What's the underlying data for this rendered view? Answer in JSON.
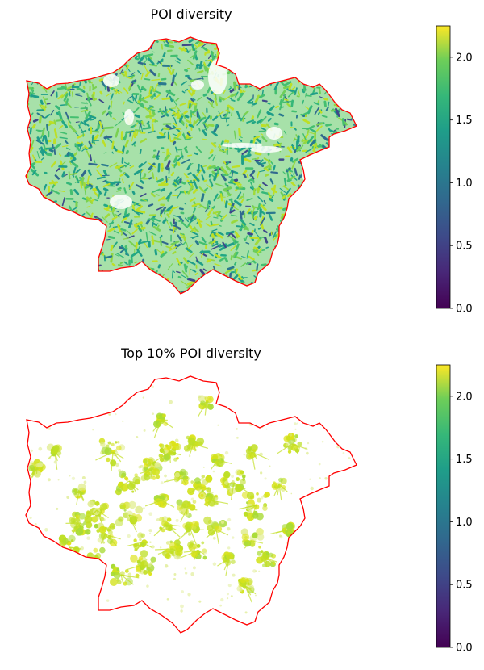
{
  "panels": [
    {
      "title": "POI diversity",
      "colorbar": {
        "min": 0.0,
        "max": 2.25,
        "ticks": [
          "0.0",
          "0.5",
          "1.0",
          "1.5",
          "2.0"
        ],
        "colormap": "viridis"
      },
      "boundary_color": "#ff0000"
    },
    {
      "title": "Top 10% POI diversity",
      "colorbar": {
        "min": 0.0,
        "max": 2.25,
        "ticks": [
          "0.0",
          "0.5",
          "1.0",
          "1.5",
          "2.0"
        ],
        "colormap": "viridis"
      },
      "boundary_color": "#ff0000"
    }
  ]
}
